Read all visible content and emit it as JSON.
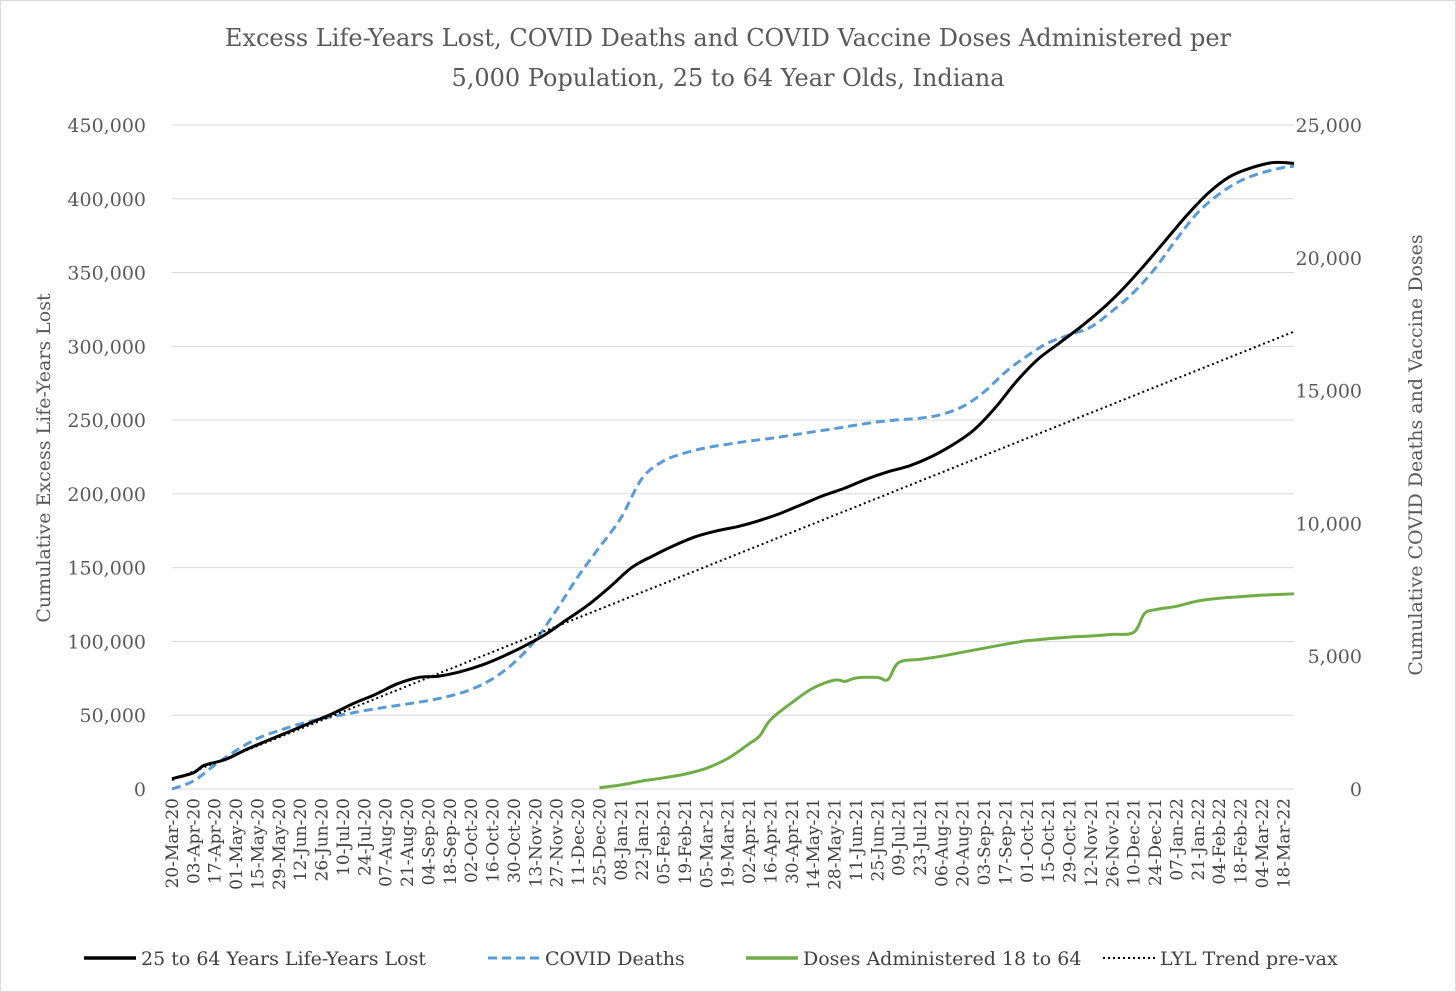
{
  "chart_data": {
    "type": "line",
    "title_lines": [
      "Excess Life-Years Lost, COVID Deaths and COVID Vaccine Doses Administered per",
      "5,000 Population, 25 to 64 Year Olds, Indiana"
    ],
    "ylabel_left": "Cumulative Excess Life-Years Lost",
    "ylabel_right": "Cumulative COVID Deaths and Vaccine Doses",
    "left_axis": {
      "min": 0,
      "max": 450000,
      "step": 50000,
      "tick_labels": [
        "0",
        "50,000",
        "100,000",
        "150,000",
        "200,000",
        "250,000",
        "300,000",
        "350,000",
        "400,000",
        "450,000"
      ]
    },
    "right_axis": {
      "min": 0,
      "max": 25000,
      "step": 5000,
      "tick_labels": [
        "0",
        "5,000",
        "10,000",
        "15,000",
        "20,000",
        "25,000"
      ]
    },
    "x_week_start": "20-Mar-20",
    "x_week_end": "25-Mar-22",
    "x_tick_labels": [
      "20-Mar-20",
      "03-Apr-20",
      "17-Apr-20",
      "01-May-20",
      "15-May-20",
      "29-May-20",
      "12-Jun-20",
      "26-Jun-20",
      "10-Jul-20",
      "24-Jul-20",
      "07-Aug-20",
      "21-Aug-20",
      "04-Sep-20",
      "18-Sep-20",
      "02-Oct-20",
      "16-Oct-20",
      "30-Oct-20",
      "13-Nov-20",
      "27-Nov-20",
      "11-Dec-20",
      "25-Dec-20",
      "08-Jan-21",
      "22-Jan-21",
      "05-Feb-21",
      "19-Feb-21",
      "05-Mar-21",
      "19-Mar-21",
      "02-Apr-21",
      "16-Apr-21",
      "30-Apr-21",
      "14-May-21",
      "28-May-21",
      "11-Jun-21",
      "25-Jun-21",
      "09-Jul-21",
      "23-Jul-21",
      "06-Aug-21",
      "20-Aug-21",
      "03-Sep-21",
      "17-Sep-21",
      "01-Oct-21",
      "15-Oct-21",
      "29-Oct-21",
      "12-Nov-21",
      "26-Nov-21",
      "10-Dec-21",
      "24-Dec-21",
      "07-Jan-22",
      "21-Jan-22",
      "04-Feb-22",
      "18-Feb-22",
      "04-Mar-22",
      "18-Mar-22"
    ],
    "grid": true,
    "legend_position": "bottom",
    "series": [
      {
        "name": "25 to 64 Years Life-Years Lost",
        "axis": "left",
        "color": "#000000",
        "style": "solid",
        "start_date": "20-Mar-20",
        "end_date": "25-Mar-22",
        "points": [
          [
            "20-Mar-20",
            7000
          ],
          [
            "03-Apr-20",
            11000
          ],
          [
            "10-Apr-20",
            16000
          ],
          [
            "24-Apr-20",
            20000
          ],
          [
            "08-May-20",
            27000
          ],
          [
            "22-May-20",
            33000
          ],
          [
            "05-Jun-20",
            39000
          ],
          [
            "19-Jun-20",
            45000
          ],
          [
            "03-Jul-20",
            51000
          ],
          [
            "17-Jul-20",
            58000
          ],
          [
            "31-Jul-20",
            64000
          ],
          [
            "14-Aug-20",
            71000
          ],
          [
            "28-Aug-20",
            75500
          ],
          [
            "11-Sep-20",
            76500
          ],
          [
            "25-Sep-20",
            79500
          ],
          [
            "09-Oct-20",
            84000
          ],
          [
            "23-Oct-20",
            90000
          ],
          [
            "06-Nov-20",
            97000
          ],
          [
            "20-Nov-20",
            105000
          ],
          [
            "04-Dec-20",
            115000
          ],
          [
            "18-Dec-20",
            125000
          ],
          [
            "01-Jan-21",
            137000
          ],
          [
            "15-Jan-21",
            150000
          ],
          [
            "29-Jan-21",
            158000
          ],
          [
            "12-Feb-21",
            165000
          ],
          [
            "26-Feb-21",
            171000
          ],
          [
            "12-Mar-21",
            175000
          ],
          [
            "26-Mar-21",
            178000
          ],
          [
            "09-Apr-21",
            182000
          ],
          [
            "23-Apr-21",
            187000
          ],
          [
            "07-May-21",
            193000
          ],
          [
            "21-May-21",
            199000
          ],
          [
            "04-Jun-21",
            204000
          ],
          [
            "18-Jun-21",
            210000
          ],
          [
            "02-Jul-21",
            215000
          ],
          [
            "16-Jul-21",
            219000
          ],
          [
            "30-Jul-21",
            225000
          ],
          [
            "13-Aug-21",
            233000
          ],
          [
            "27-Aug-21",
            243000
          ],
          [
            "10-Sep-21",
            258000
          ],
          [
            "24-Sep-21",
            276000
          ],
          [
            "08-Oct-21",
            291000
          ],
          [
            "22-Oct-21",
            302000
          ],
          [
            "05-Nov-21",
            313000
          ],
          [
            "19-Nov-21",
            325000
          ],
          [
            "03-Dec-21",
            339000
          ],
          [
            "17-Dec-21",
            355000
          ],
          [
            "31-Dec-21",
            372000
          ],
          [
            "14-Jan-22",
            389000
          ],
          [
            "28-Jan-22",
            404000
          ],
          [
            "11-Feb-22",
            415000
          ],
          [
            "25-Feb-22",
            421000
          ],
          [
            "11-Mar-22",
            424500
          ],
          [
            "25-Mar-22",
            424000
          ]
        ]
      },
      {
        "name": "COVID Deaths",
        "axis": "right",
        "color": "#5b9bd5",
        "style": "dashed",
        "start_date": "20-Mar-20",
        "end_date": "25-Mar-22",
        "points": [
          [
            "20-Mar-20",
            0
          ],
          [
            "03-Apr-20",
            300
          ],
          [
            "17-Apr-20",
            900
          ],
          [
            "01-May-20",
            1450
          ],
          [
            "15-May-20",
            1900
          ],
          [
            "29-May-20",
            2200
          ],
          [
            "12-Jun-20",
            2450
          ],
          [
            "26-Jun-20",
            2650
          ],
          [
            "10-Jul-20",
            2800
          ],
          [
            "24-Jul-20",
            2950
          ],
          [
            "07-Aug-20",
            3080
          ],
          [
            "21-Aug-20",
            3200
          ],
          [
            "04-Sep-20",
            3330
          ],
          [
            "18-Sep-20",
            3500
          ],
          [
            "02-Oct-20",
            3750
          ],
          [
            "16-Oct-20",
            4150
          ],
          [
            "30-Oct-20",
            4750
          ],
          [
            "13-Nov-20",
            5600
          ],
          [
            "27-Nov-20",
            6750
          ],
          [
            "11-Dec-20",
            8000
          ],
          [
            "25-Dec-20",
            9100
          ],
          [
            "08-Jan-21",
            10200
          ],
          [
            "22-Jan-21",
            11700
          ],
          [
            "05-Feb-21",
            12350
          ],
          [
            "19-Feb-21",
            12650
          ],
          [
            "05-Mar-21",
            12850
          ],
          [
            "19-Mar-21",
            12980
          ],
          [
            "02-Apr-21",
            13100
          ],
          [
            "16-Apr-21",
            13200
          ],
          [
            "30-Apr-21",
            13320
          ],
          [
            "14-May-21",
            13450
          ],
          [
            "28-May-21",
            13570
          ],
          [
            "11-Jun-21",
            13700
          ],
          [
            "25-Jun-21",
            13820
          ],
          [
            "09-Jul-21",
            13900
          ],
          [
            "23-Jul-21",
            13960
          ],
          [
            "06-Aug-21",
            14100
          ],
          [
            "20-Aug-21",
            14400
          ],
          [
            "03-Sep-21",
            14950
          ],
          [
            "17-Sep-21",
            15700
          ],
          [
            "01-Oct-21",
            16300
          ],
          [
            "15-Oct-21",
            16800
          ],
          [
            "29-Oct-21",
            17100
          ],
          [
            "12-Nov-21",
            17400
          ],
          [
            "26-Nov-21",
            18000
          ],
          [
            "10-Dec-21",
            18700
          ],
          [
            "24-Dec-21",
            19600
          ],
          [
            "07-Jan-22",
            20700
          ],
          [
            "21-Jan-22",
            21700
          ],
          [
            "04-Feb-22",
            22400
          ],
          [
            "18-Feb-22",
            22900
          ],
          [
            "04-Mar-22",
            23200
          ],
          [
            "18-Mar-22",
            23400
          ],
          [
            "25-Mar-22",
            23450
          ]
        ]
      },
      {
        "name": "Doses Administered 18 to 64",
        "axis": "right",
        "color": "#70ad47",
        "style": "solid",
        "start_date": "25-Dec-20",
        "end_date": "25-Mar-22",
        "points": [
          [
            "25-Dec-20",
            50
          ],
          [
            "08-Jan-21",
            150
          ],
          [
            "22-Jan-21",
            300
          ],
          [
            "05-Feb-21",
            420
          ],
          [
            "19-Feb-21",
            560
          ],
          [
            "05-Mar-21",
            780
          ],
          [
            "19-Mar-21",
            1150
          ],
          [
            "02-Apr-21",
            1700
          ],
          [
            "09-Apr-21",
            2000
          ],
          [
            "16-Apr-21",
            2600
          ],
          [
            "30-Apr-21",
            3250
          ],
          [
            "14-May-21",
            3800
          ],
          [
            "28-May-21",
            4100
          ],
          [
            "04-Jun-21",
            4050
          ],
          [
            "11-Jun-21",
            4180
          ],
          [
            "25-Jun-21",
            4200
          ],
          [
            "02-Jul-21",
            4120
          ],
          [
            "09-Jul-21",
            4760
          ],
          [
            "23-Jul-21",
            4880
          ],
          [
            "06-Aug-21",
            5000
          ],
          [
            "20-Aug-21",
            5150
          ],
          [
            "03-Sep-21",
            5300
          ],
          [
            "17-Sep-21",
            5450
          ],
          [
            "01-Oct-21",
            5580
          ],
          [
            "15-Oct-21",
            5660
          ],
          [
            "29-Oct-21",
            5720
          ],
          [
            "12-Nov-21",
            5760
          ],
          [
            "26-Nov-21",
            5820
          ],
          [
            "10-Dec-21",
            5900
          ],
          [
            "17-Dec-21",
            6600
          ],
          [
            "24-Dec-21",
            6750
          ],
          [
            "07-Jan-22",
            6880
          ],
          [
            "21-Jan-22",
            7080
          ],
          [
            "04-Feb-22",
            7180
          ],
          [
            "18-Feb-22",
            7240
          ],
          [
            "04-Mar-22",
            7300
          ],
          [
            "18-Mar-22",
            7330
          ],
          [
            "25-Mar-22",
            7350
          ]
        ]
      },
      {
        "name": "LYL Trend pre-vax",
        "axis": "left",
        "color": "#000000",
        "style": "dotted",
        "start_date": "20-Mar-20",
        "end_date": "25-Mar-22",
        "points": [
          [
            "20-Mar-20",
            6000
          ],
          [
            "25-Mar-22",
            310000
          ]
        ]
      }
    ]
  }
}
